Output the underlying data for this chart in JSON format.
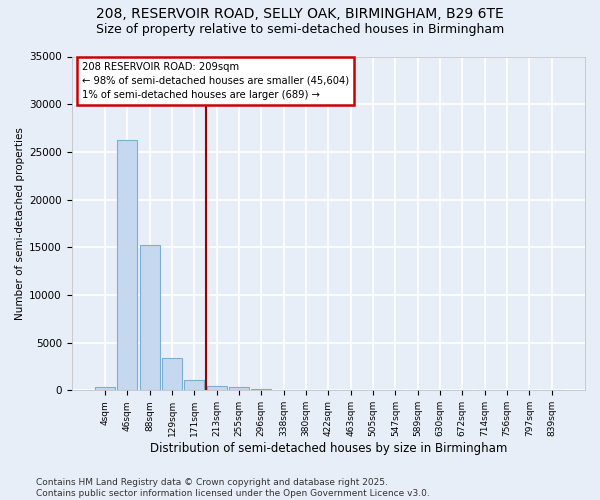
{
  "title_line1": "208, RESERVOIR ROAD, SELLY OAK, BIRMINGHAM, B29 6TE",
  "title_line2": "Size of property relative to semi-detached houses in Birmingham",
  "xlabel": "Distribution of semi-detached houses by size in Birmingham",
  "ylabel": "Number of semi-detached properties",
  "categories": [
    "4sqm",
    "46sqm",
    "88sqm",
    "129sqm",
    "171sqm",
    "213sqm",
    "255sqm",
    "296sqm",
    "338sqm",
    "380sqm",
    "422sqm",
    "463sqm",
    "505sqm",
    "547sqm",
    "589sqm",
    "630sqm",
    "672sqm",
    "714sqm",
    "756sqm",
    "797sqm",
    "839sqm"
  ],
  "values": [
    400,
    26200,
    15200,
    3400,
    1100,
    500,
    300,
    100,
    0,
    0,
    0,
    0,
    0,
    0,
    0,
    0,
    0,
    0,
    0,
    0,
    0
  ],
  "bar_color": "#c5d8f0",
  "bar_edge_color": "#7aafd4",
  "bg_color": "#e8eef8",
  "grid_color": "#ffffff",
  "vline_color": "#990000",
  "annotation_text": "208 RESERVOIR ROAD: 209sqm\n← 98% of semi-detached houses are smaller (45,604)\n1% of semi-detached houses are larger (689) →",
  "annotation_box_color": "#cc0000",
  "annotation_fill": "#ffffff",
  "ylim": [
    0,
    35000
  ],
  "yticks": [
    0,
    5000,
    10000,
    15000,
    20000,
    25000,
    30000,
    35000
  ],
  "footer": "Contains HM Land Registry data © Crown copyright and database right 2025.\nContains public sector information licensed under the Open Government Licence v3.0.",
  "title_fontsize": 10,
  "subtitle_fontsize": 9,
  "footer_fontsize": 6.5,
  "vline_index": 4.5
}
